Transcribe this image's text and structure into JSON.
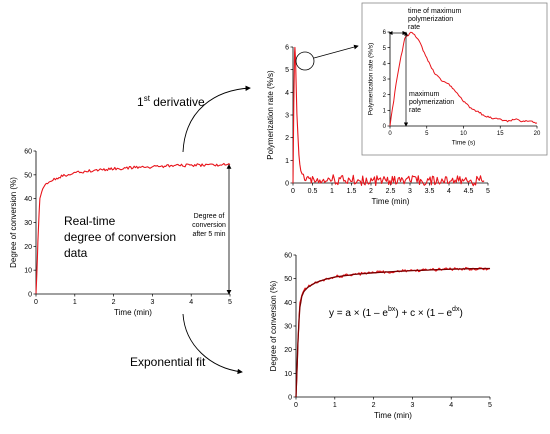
{
  "colors": {
    "data": "#e8141b",
    "fit": "#7a0000",
    "axis": "#000000",
    "arrow": "#000000"
  },
  "labels": {
    "first_derivative_base": "1",
    "first_derivative_sup": "st",
    "first_derivative_rest": " derivative",
    "realtime_1": "Real-time",
    "realtime_2": "degree of conversion",
    "realtime_3": "data",
    "exp_fit": "Exponential fit",
    "doc5_1": "Degree of",
    "doc5_2": "conversion",
    "doc5_3": "after 5 min",
    "tmax_1": "time of maximum",
    "tmax_2": "polymerization",
    "tmax_3": "rate",
    "maxrate_1": "maximum",
    "maxrate_2": "polymerization",
    "maxrate_3": "rate",
    "eq_a": "y = a × (1 – e",
    "eq_b_sup": "bx",
    "eq_c": ") + c × (1 – e",
    "eq_d_sup": "dx",
    "eq_e": ")"
  },
  "chart_data": [
    {
      "id": "conversion",
      "type": "line",
      "xlabel": "Time (min)",
      "ylabel": "Degree of conversion (%)",
      "xlim": [
        0,
        5
      ],
      "ylim": [
        0,
        60
      ],
      "xticks": [
        0,
        1,
        2,
        3,
        4,
        5
      ],
      "yticks": [
        0,
        10,
        20,
        30,
        40,
        50,
        60
      ],
      "series": [
        {
          "x": [
            0,
            0.02,
            0.05,
            0.08,
            0.1,
            0.15,
            0.2,
            0.3,
            0.5,
            0.75,
            1,
            1.5,
            2,
            2.5,
            3,
            3.5,
            4,
            4.5,
            5
          ],
          "y": [
            0,
            8,
            22,
            34,
            40,
            43,
            45,
            46.5,
            48.5,
            49.8,
            50.8,
            51.8,
            52.5,
            53,
            53.4,
            53.8,
            54,
            54.2,
            54.3
          ]
        }
      ]
    },
    {
      "id": "rate",
      "type": "line",
      "xlabel": "Time (min)",
      "ylabel": "Polymerization rate (%/s)",
      "xlim": [
        0,
        5
      ],
      "ylim": [
        0,
        6
      ],
      "xticks": [
        0,
        0.5,
        1,
        1.5,
        2,
        2.5,
        3,
        3.5,
        4,
        4.5,
        5
      ],
      "yticks": [
        0,
        1,
        2,
        3,
        4,
        5,
        6
      ],
      "series": [
        {
          "x": [
            0,
            0.02,
            0.04,
            0.05,
            0.07,
            0.1,
            0.15,
            0.2,
            0.3,
            0.5,
            1,
            2,
            3,
            4,
            4.9
          ],
          "y": [
            0,
            3.5,
            5.8,
            6.0,
            5.2,
            3.0,
            1.2,
            0.5,
            0.3,
            0.2,
            0.15,
            0.1,
            0.1,
            0.1,
            0.1
          ]
        }
      ]
    },
    {
      "id": "rate_zoom",
      "type": "line",
      "xlabel": "Time (s)",
      "ylabel": "Polymerization rate (%/s)",
      "xlim": [
        0,
        20
      ],
      "ylim": [
        0,
        6
      ],
      "xticks": [
        0,
        5,
        10,
        15,
        20
      ],
      "yticks": [
        0,
        1,
        2,
        3,
        4,
        5,
        6
      ],
      "series": [
        {
          "x": [
            0,
            1,
            2,
            3,
            4,
            5,
            6,
            7,
            8,
            9,
            10,
            11,
            12,
            13,
            14,
            15,
            16,
            17,
            18,
            19,
            20
          ],
          "y": [
            0,
            3.2,
            5.6,
            6.0,
            5.4,
            4.3,
            3.4,
            2.9,
            2.7,
            2.2,
            1.6,
            1.1,
            0.9,
            0.6,
            0.5,
            0.4,
            0.3,
            0.45,
            0.3,
            0.35,
            0.2
          ]
        }
      ]
    },
    {
      "id": "fit",
      "type": "line",
      "xlabel": "Time (min)",
      "ylabel": "Degree of conversion (%)",
      "xlim": [
        0,
        5
      ],
      "ylim": [
        0,
        60
      ],
      "xticks": [
        0,
        1,
        2,
        3,
        4,
        5
      ],
      "yticks": [
        0,
        10,
        20,
        30,
        40,
        50,
        60
      ],
      "series": [
        {
          "name": "data",
          "x": [
            0,
            0.02,
            0.05,
            0.08,
            0.1,
            0.15,
            0.2,
            0.3,
            0.5,
            0.75,
            1,
            1.5,
            2,
            2.5,
            3,
            3.5,
            4,
            4.5,
            5
          ],
          "y": [
            0,
            8,
            22,
            34,
            40,
            43,
            45,
            46.5,
            48.5,
            49.8,
            50.8,
            51.8,
            52.5,
            53,
            53.4,
            53.8,
            54,
            54.2,
            54.3
          ]
        },
        {
          "name": "fit",
          "x": [
            0,
            0.02,
            0.05,
            0.08,
            0.1,
            0.15,
            0.2,
            0.3,
            0.5,
            0.75,
            1,
            1.5,
            2,
            2.5,
            3,
            3.5,
            4,
            4.5,
            5
          ],
          "y": [
            0,
            10,
            23,
            33,
            38,
            42.5,
            44.5,
            46.3,
            48.3,
            49.7,
            50.7,
            51.8,
            52.5,
            53,
            53.4,
            53.7,
            54,
            54.2,
            54.3
          ]
        }
      ]
    }
  ]
}
